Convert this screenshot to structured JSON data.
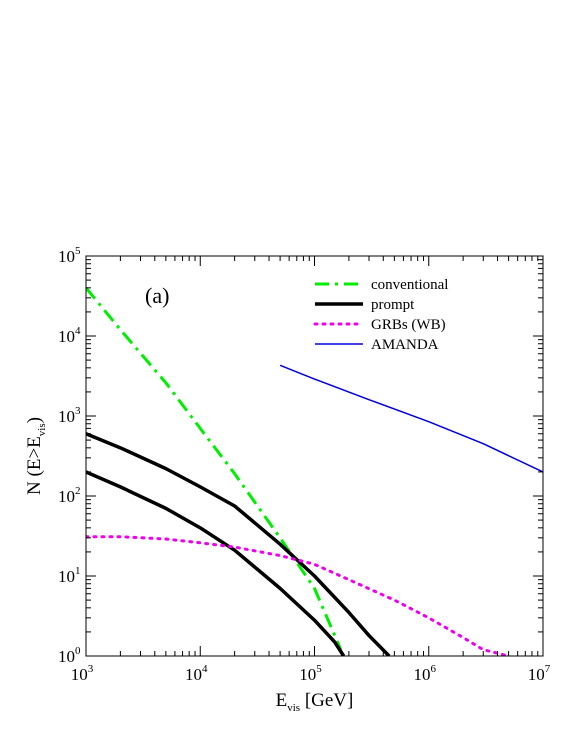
{
  "chart_data": {
    "type": "line",
    "panel_label": "(a)",
    "xlabel": {
      "main": "E",
      "sub": "vis",
      "tail": " [GeV]"
    },
    "ylabel": {
      "pre": "N (E>E",
      "sub": "vis",
      "post": ")"
    },
    "xscale": "log",
    "yscale": "log",
    "xlim": [
      1000,
      10000000
    ],
    "ylim": [
      1,
      100000
    ],
    "x_ticks": [
      {
        "base": "10",
        "exp": "3",
        "value": 1000
      },
      {
        "base": "10",
        "exp": "4",
        "value": 10000
      },
      {
        "base": "10",
        "exp": "5",
        "value": 100000
      },
      {
        "base": "10",
        "exp": "6",
        "value": 1000000
      },
      {
        "base": "10",
        "exp": "7",
        "value": 10000000
      }
    ],
    "y_ticks": [
      {
        "base": "10",
        "exp": "0",
        "value": 1
      },
      {
        "base": "10",
        "exp": "1",
        "value": 10
      },
      {
        "base": "10",
        "exp": "2",
        "value": 100
      },
      {
        "base": "10",
        "exp": "3",
        "value": 1000
      },
      {
        "base": "10",
        "exp": "4",
        "value": 10000
      },
      {
        "base": "10",
        "exp": "5",
        "value": 100000
      }
    ],
    "grid": false,
    "legend_position": "top-right",
    "series": [
      {
        "name": "conventional",
        "color": "#00ee00",
        "style": "dash-dot",
        "width": 3,
        "x": [
          1000,
          2000,
          5000,
          10000,
          20000,
          50000,
          100000,
          170000
        ],
        "y": [
          40000,
          12000,
          2600,
          700,
          190,
          30,
          7,
          1.2
        ]
      },
      {
        "name": "prompt",
        "color": "#000000",
        "style": "solid",
        "width": 3.5,
        "x": [
          1000,
          2000,
          5000,
          10000,
          20000,
          50000,
          100000,
          200000,
          300000,
          450000
        ],
        "y": [
          600,
          400,
          220,
          130,
          75,
          25,
          10,
          3.5,
          1.8,
          1
        ]
      },
      {
        "name": "",
        "color": "#000000",
        "style": "solid",
        "width": 3.5,
        "x": [
          1000,
          2000,
          5000,
          10000,
          20000,
          50000,
          100000,
          150000,
          180000
        ],
        "y": [
          200,
          130,
          70,
          40,
          21,
          7,
          2.8,
          1.5,
          1
        ]
      },
      {
        "name": "GRBs (WB)",
        "color": "#ee00ee",
        "style": "dotted",
        "width": 3,
        "x": [
          1000,
          2000,
          5000,
          10000,
          20000,
          50000,
          100000,
          200000,
          500000,
          1000000,
          2000000,
          3000000,
          5000000
        ],
        "y": [
          31,
          31,
          29,
          26,
          23,
          18,
          14,
          9,
          5,
          3,
          1.7,
          1.2,
          1
        ]
      },
      {
        "name": "AMANDA",
        "color": "#0000dd",
        "style": "solid",
        "width": 1.5,
        "x": [
          50000,
          100000,
          300000,
          1000000,
          3000000,
          10000000
        ],
        "y": [
          4300,
          2900,
          1600,
          850,
          450,
          200
        ]
      }
    ]
  }
}
